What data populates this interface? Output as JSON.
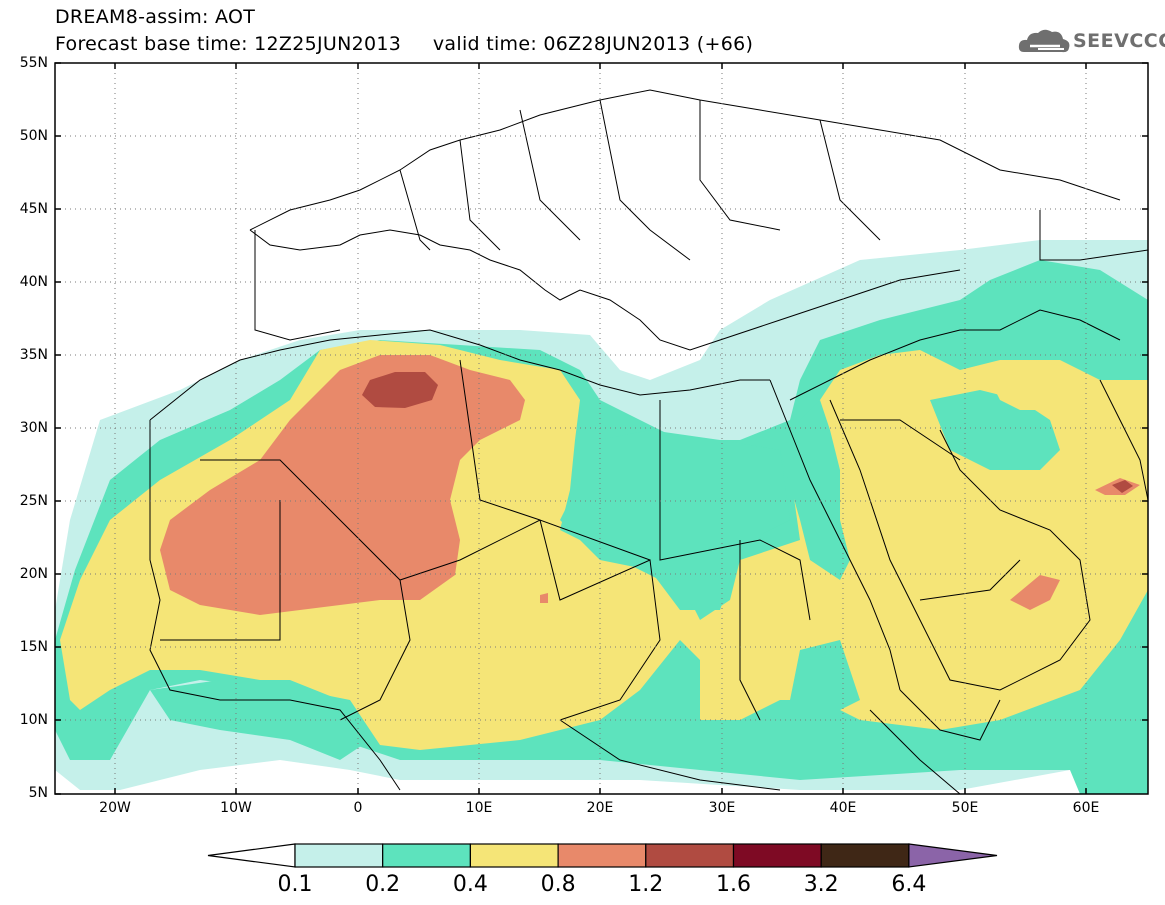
{
  "header": {
    "title_line1": "DREAM8-assim: AOT",
    "title_line2": "Forecast base time: 12Z25JUN2013     valid time: 06Z28JUN2013 (+66)",
    "logo_text": "SEEVCCC",
    "logo_icon": "cloud-logo-icon"
  },
  "map": {
    "lon_range": [
      -25,
      65
    ],
    "lat_range": [
      5,
      55
    ],
    "lat_ticks": [
      "55N",
      "50N",
      "45N",
      "40N",
      "35N",
      "30N",
      "25N",
      "20N",
      "15N",
      "10N",
      "5N"
    ],
    "lon_ticks": [
      "20W",
      "10W",
      "0",
      "10E",
      "20E",
      "30E",
      "40E",
      "50E",
      "60E"
    ],
    "variable": "AOT",
    "grid": "dotted"
  },
  "colorbar": {
    "levels": [
      "0.1",
      "0.2",
      "0.4",
      "0.8",
      "1.2",
      "1.6",
      "3.2",
      "6.4"
    ],
    "colors": [
      "#ffffff",
      "#c5f0ea",
      "#5de3bd",
      "#f5e577",
      "#e8896a",
      "#b04b41",
      "#7e0a24",
      "#3f2716",
      "#8b64a8"
    ]
  }
}
